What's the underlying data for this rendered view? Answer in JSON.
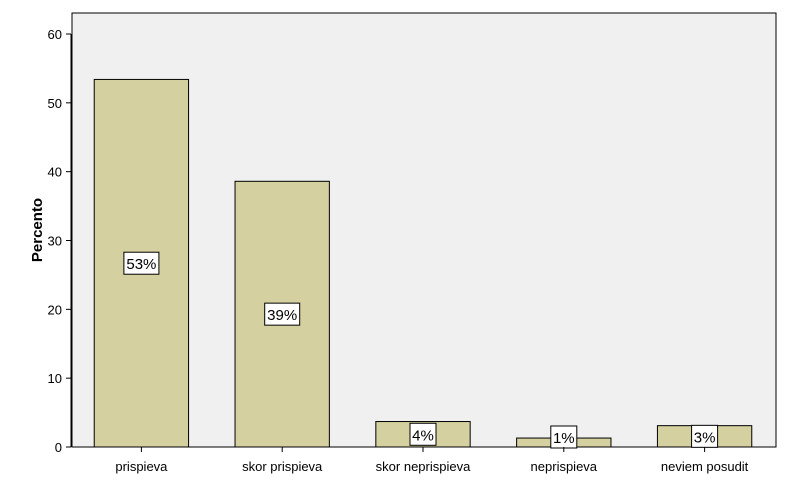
{
  "chart_data": {
    "type": "bar",
    "ylabel": "Percento",
    "xlabel": "",
    "ylim": [
      0,
      60
    ],
    "yticks": [
      0,
      10,
      20,
      30,
      40,
      50,
      60
    ],
    "grid": false,
    "categories": [
      "prispieva",
      "skor prispieva",
      "skor neprispieva",
      "neprispieva",
      "neviem posudit"
    ],
    "values": [
      53.4,
      38.6,
      3.7,
      1.3,
      3.1
    ],
    "data_labels": [
      "53%",
      "39%",
      "4%",
      "1%",
      "3%"
    ]
  },
  "colors": {
    "bar_fill": "#d4d09f",
    "plot_background": "#f0f0f0",
    "axis": "#000000"
  }
}
